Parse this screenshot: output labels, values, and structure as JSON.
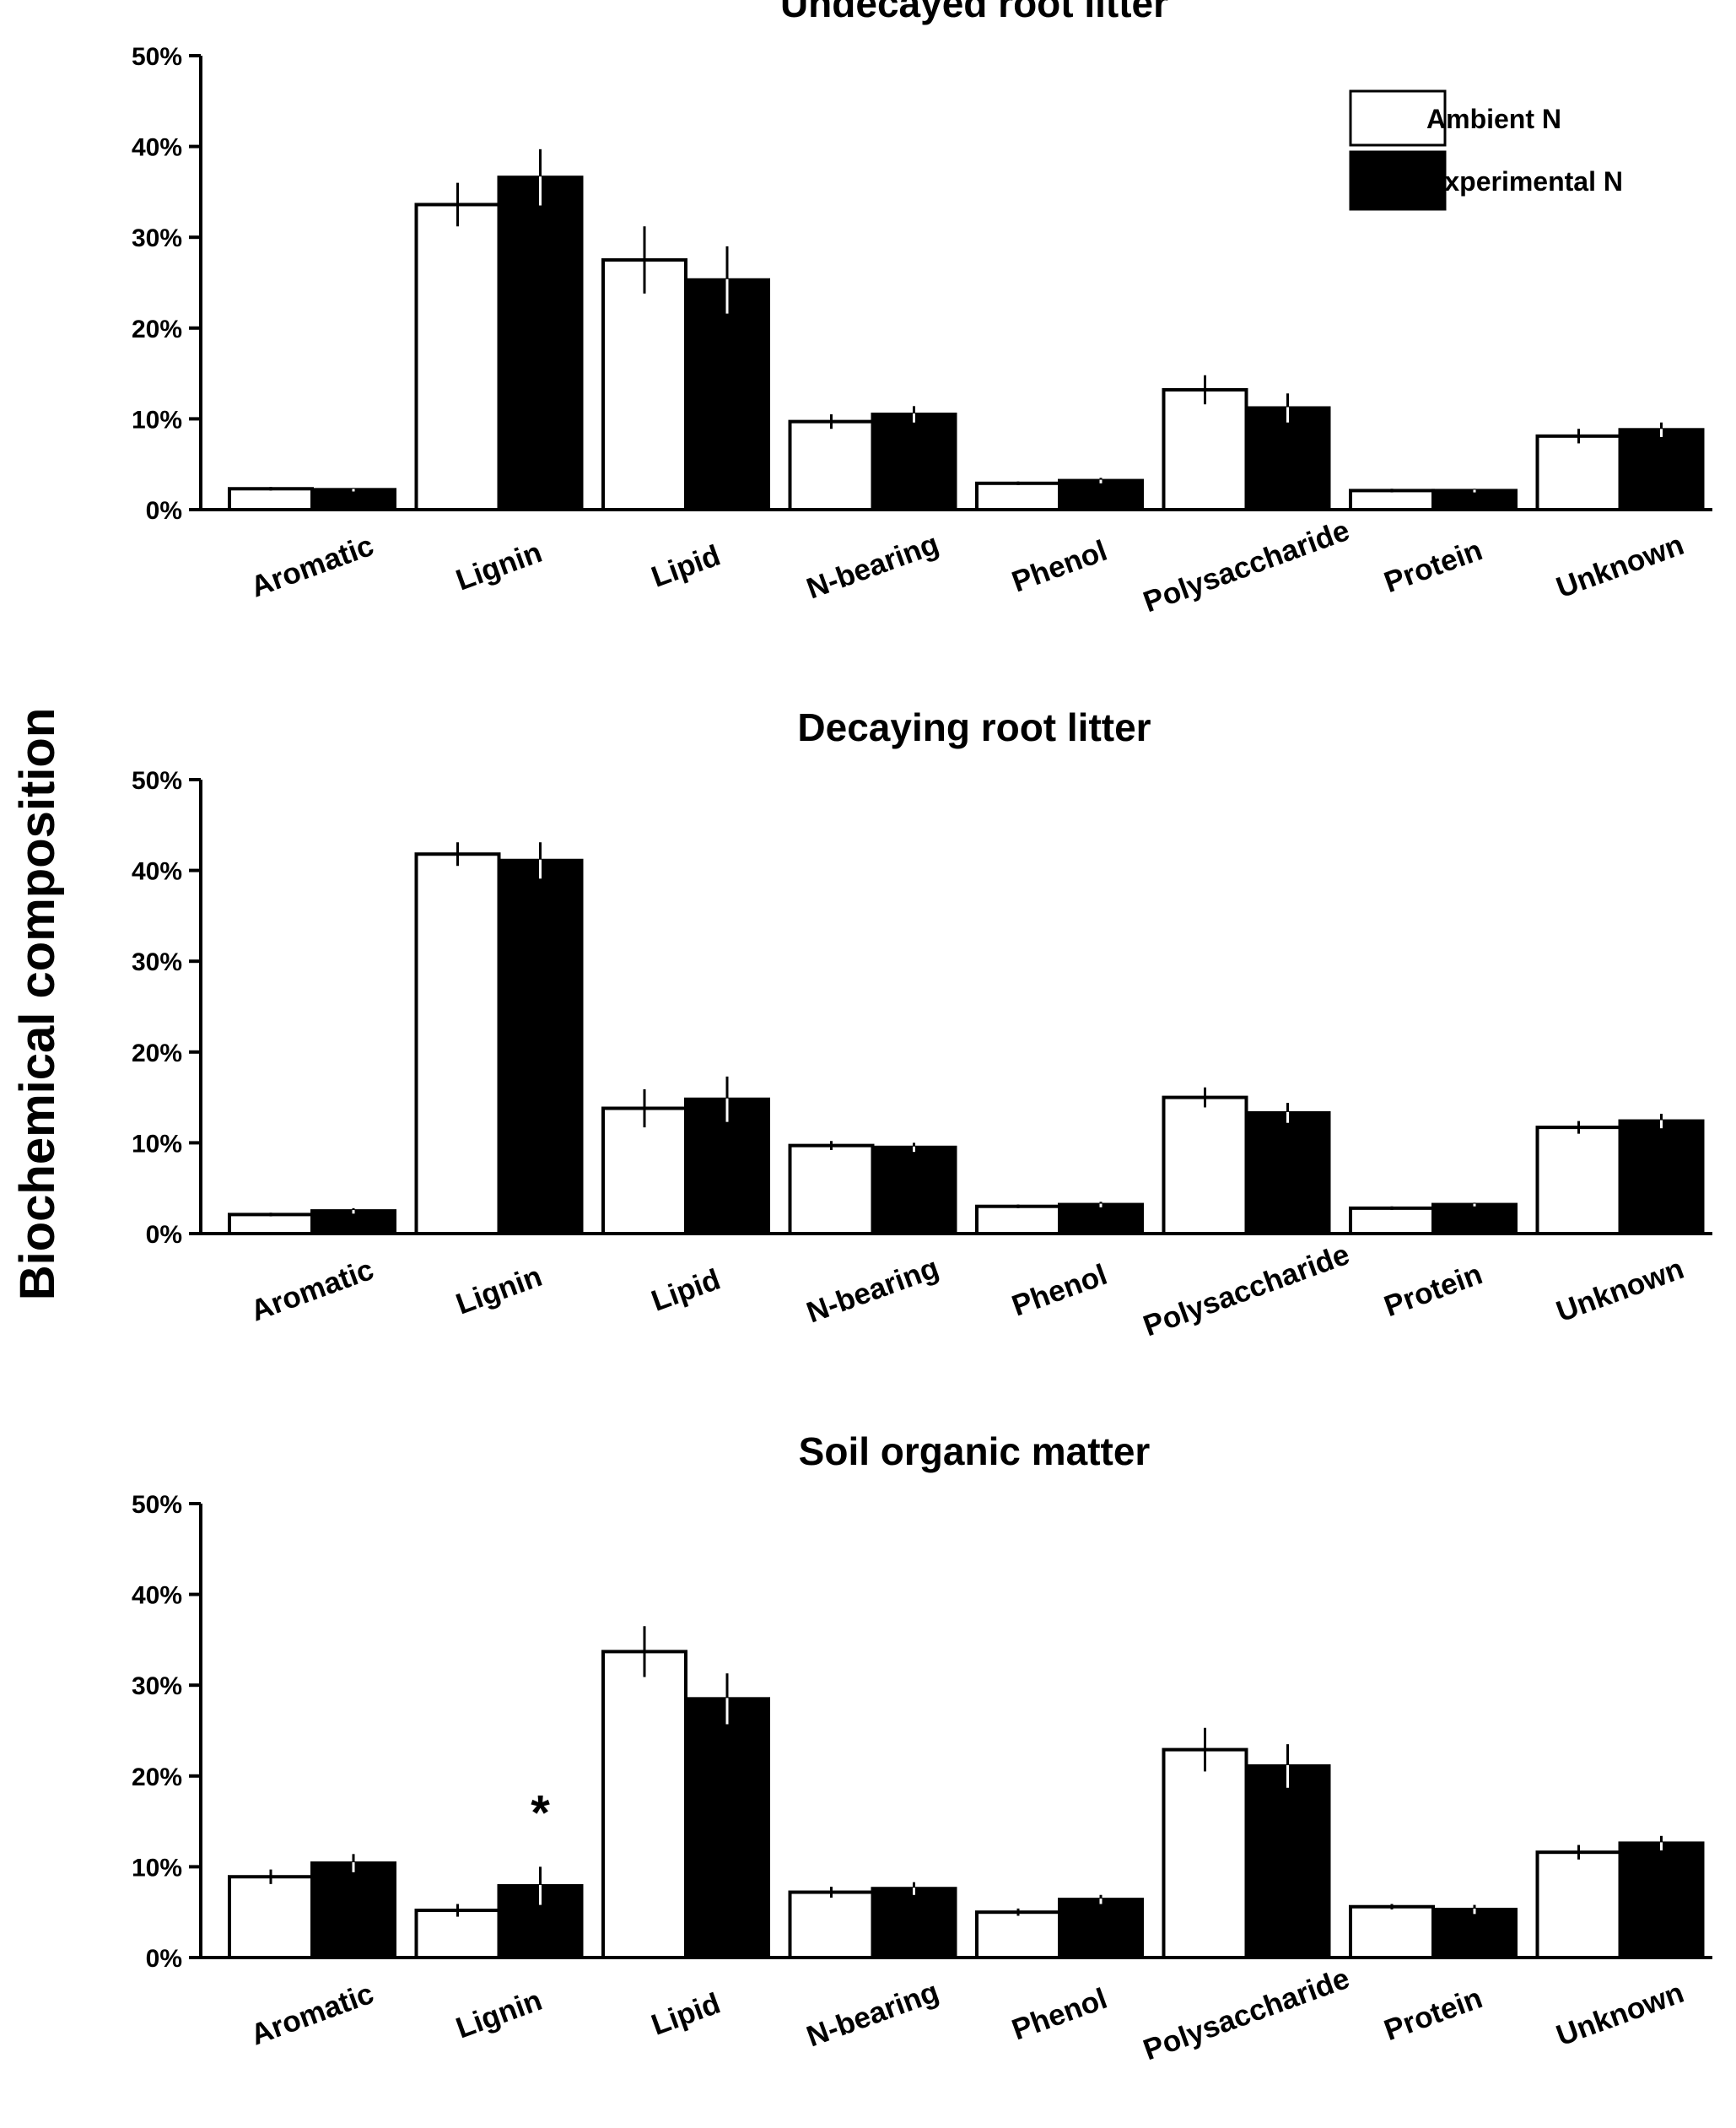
{
  "figure": {
    "ylabel": "Biochemical composition"
  },
  "legend": {
    "ambient_label": "Ambient N",
    "experimental_label": "Experimental N",
    "ambient_color": "#ffffff",
    "experimental_color": "#000000"
  },
  "chart_data": [
    {
      "type": "bar",
      "title": "Undecayed root litter",
      "xlabel": "",
      "ylabel": "Biochemical composition",
      "ylim": [
        0,
        50
      ],
      "yticks": [
        "0%",
        "10%",
        "20%",
        "30%",
        "40%",
        "50%"
      ],
      "categories": [
        "Aromatic",
        "Lignin",
        "Lipid",
        "N-bearing",
        "Phenol",
        "Polysaccharide",
        "Protein",
        "Unknown"
      ],
      "series": [
        {
          "name": "Ambient N",
          "color": "#ffffff",
          "values": [
            2.3,
            33.6,
            27.5,
            9.7,
            2.9,
            13.2,
            2.1,
            8.1
          ],
          "errors": [
            0.2,
            2.4,
            3.7,
            0.8,
            0.2,
            1.6,
            0.2,
            0.8
          ]
        },
        {
          "name": "Experimental N",
          "color": "#000000",
          "values": [
            2.2,
            36.6,
            25.3,
            10.5,
            3.2,
            11.2,
            2.1,
            8.8
          ],
          "errors": [
            0.2,
            3.1,
            3.7,
            0.9,
            0.3,
            1.6,
            0.2,
            0.8
          ]
        }
      ],
      "annotations": [],
      "legend_position": "top-right"
    },
    {
      "type": "bar",
      "title": "Decaying root litter",
      "xlabel": "",
      "ylabel": "Biochemical composition",
      "ylim": [
        0,
        50
      ],
      "yticks": [
        "0%",
        "10%",
        "20%",
        "30%",
        "40%",
        "50%"
      ],
      "categories": [
        "Aromatic",
        "Lignin",
        "Lipid",
        "N-bearing",
        "Phenol",
        "Polysaccharide",
        "Protein",
        "Unknown"
      ],
      "series": [
        {
          "name": "Ambient N",
          "color": "#ffffff",
          "values": [
            2.1,
            41.8,
            13.8,
            9.7,
            3.0,
            15.0,
            2.8,
            11.7
          ],
          "errors": [
            0.2,
            1.3,
            2.1,
            0.5,
            0.2,
            1.1,
            0.2,
            0.7
          ]
        },
        {
          "name": "Experimental N",
          "color": "#000000",
          "values": [
            2.5,
            41.1,
            14.8,
            9.5,
            3.2,
            13.3,
            3.2,
            12.4
          ],
          "errors": [
            0.3,
            2.0,
            2.5,
            0.5,
            0.3,
            1.1,
            0.2,
            0.8
          ]
        }
      ],
      "annotations": []
    },
    {
      "type": "bar",
      "title": "Soil organic matter",
      "xlabel": "",
      "ylabel": "Biochemical composition",
      "ylim": [
        0,
        50
      ],
      "yticks": [
        "0%",
        "10%",
        "20%",
        "30%",
        "40%",
        "50%"
      ],
      "categories": [
        "Aromatic",
        "Lignin",
        "Lipid",
        "N-bearing",
        "Phenol",
        "Polysaccharide",
        "Protein",
        "Unknown"
      ],
      "series": [
        {
          "name": "Ambient N",
          "color": "#ffffff",
          "values": [
            8.9,
            5.2,
            33.7,
            7.2,
            5.0,
            22.9,
            5.6,
            11.6
          ],
          "errors": [
            0.8,
            0.7,
            2.8,
            0.6,
            0.4,
            2.4,
            0.3,
            0.8
          ]
        },
        {
          "name": "Experimental N",
          "color": "#000000",
          "values": [
            10.4,
            7.9,
            28.5,
            7.6,
            6.4,
            21.1,
            5.3,
            12.6
          ],
          "errors": [
            1.0,
            2.1,
            2.8,
            0.7,
            0.5,
            2.4,
            0.5,
            0.8
          ]
        }
      ],
      "annotations": [
        {
          "text": "*",
          "category": "Lignin"
        }
      ]
    }
  ]
}
